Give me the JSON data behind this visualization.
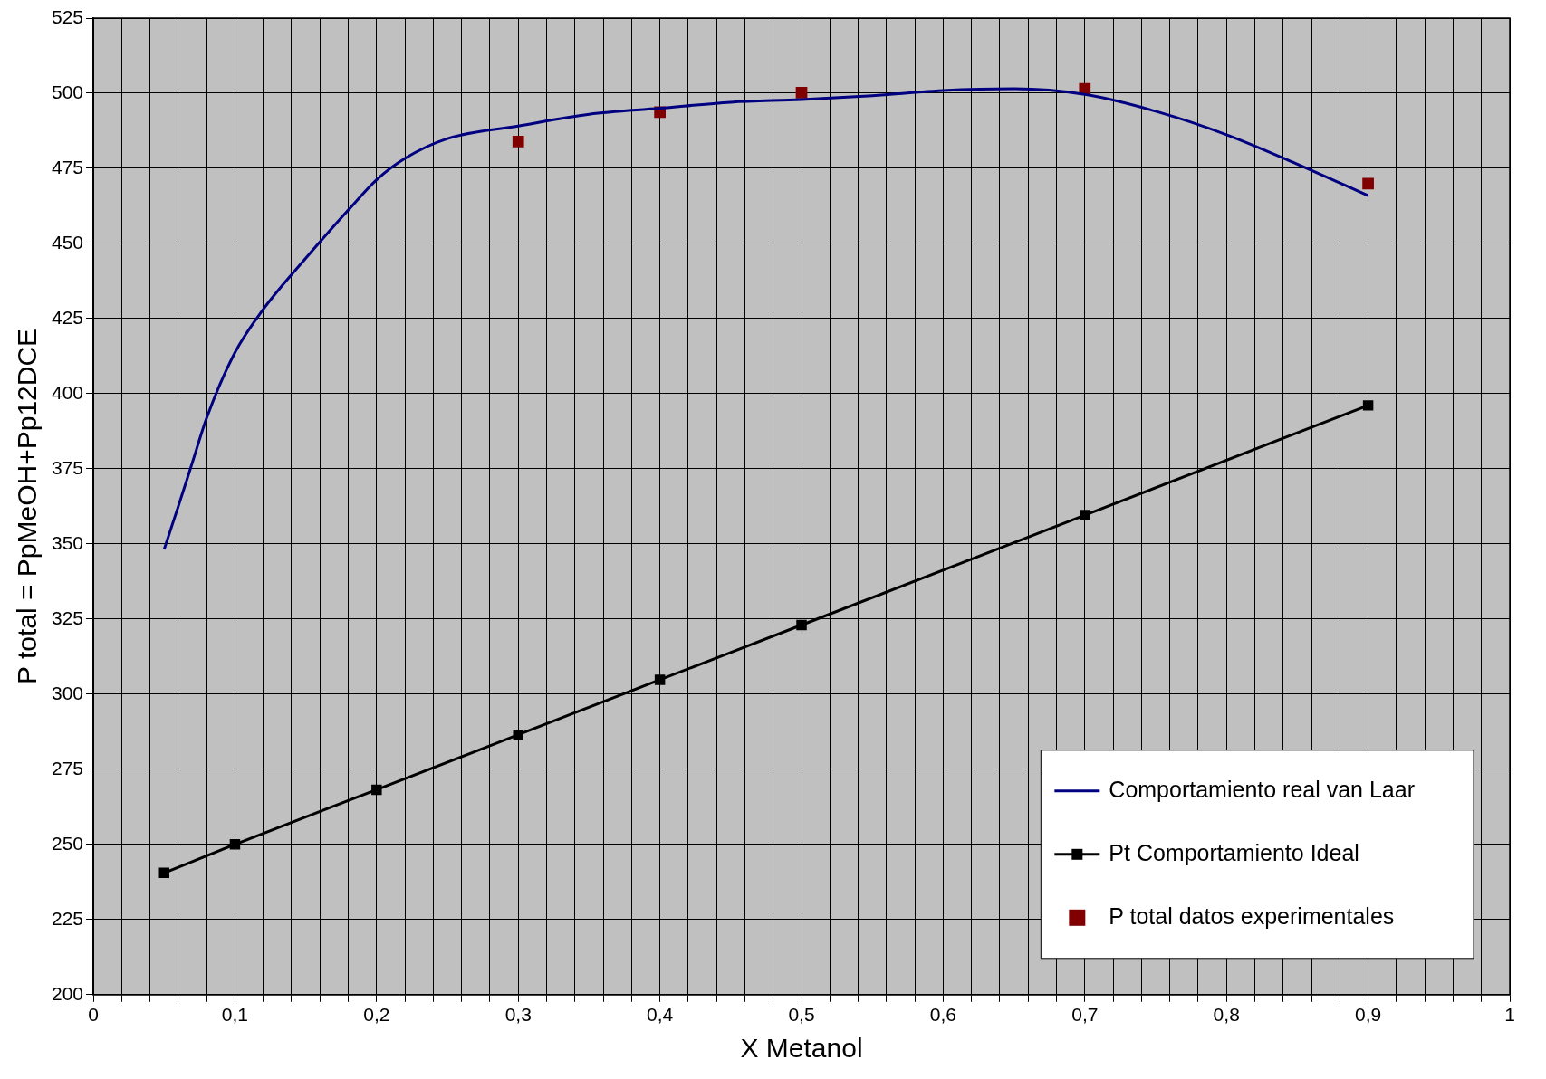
{
  "chart_data": {
    "type": "line",
    "xlabel": "X Metanol",
    "ylabel": "P total = PpMeOH+Pp12DCE",
    "xlim": [
      0,
      1
    ],
    "xticks": [
      0,
      {
        "value": 0.02,
        "label": null
      },
      {
        "value": 0.04,
        "label": null
      },
      {
        "value": 0.06,
        "label": null
      },
      {
        "value": 0.08,
        "label": null
      },
      {
        "value": 0.1,
        "label": "0,1"
      },
      {
        "value": 0.12,
        "label": null
      },
      {
        "value": 0.14,
        "label": null
      },
      {
        "value": 0.16,
        "label": null
      },
      {
        "value": 0.18,
        "label": null
      },
      {
        "value": 0.2,
        "label": "0,2"
      },
      {
        "value": 0.22,
        "label": null
      },
      {
        "value": 0.24,
        "label": null
      },
      {
        "value": 0.26,
        "label": null
      },
      {
        "value": 0.28,
        "label": null
      },
      {
        "value": 0.3,
        "label": "0,3"
      },
      {
        "value": 0.32,
        "label": null
      },
      {
        "value": 0.34,
        "label": null
      },
      {
        "value": 0.36,
        "label": null
      },
      {
        "value": 0.38,
        "label": null
      },
      {
        "value": 0.4,
        "label": "0,4"
      },
      {
        "value": 0.42,
        "label": null
      },
      {
        "value": 0.44,
        "label": null
      },
      {
        "value": 0.46,
        "label": null
      },
      {
        "value": 0.48,
        "label": null
      },
      {
        "value": 0.5,
        "label": "0,5"
      },
      {
        "value": 0.52,
        "label": null
      },
      {
        "value": 0.54,
        "label": null
      },
      {
        "value": 0.56,
        "label": null
      },
      {
        "value": 0.58,
        "label": null
      },
      {
        "value": 0.6,
        "label": "0,6"
      },
      {
        "value": 0.62,
        "label": null
      },
      {
        "value": 0.64,
        "label": null
      },
      {
        "value": 0.66,
        "label": null
      },
      {
        "value": 0.68,
        "label": null
      },
      {
        "value": 0.7,
        "label": "0,7"
      },
      {
        "value": 0.72,
        "label": null
      },
      {
        "value": 0.74,
        "label": null
      },
      {
        "value": 0.76,
        "label": null
      },
      {
        "value": 0.78,
        "label": null
      },
      {
        "value": 0.8,
        "label": "0,8"
      },
      {
        "value": 0.82,
        "label": null
      },
      {
        "value": 0.84,
        "label": null
      },
      {
        "value": 0.86,
        "label": null
      },
      {
        "value": 0.88,
        "label": null
      },
      {
        "value": 0.9,
        "label": "0,9"
      },
      {
        "value": 0.92,
        "label": null
      },
      {
        "value": 0.94,
        "label": null
      },
      {
        "value": 0.96,
        "label": null
      },
      {
        "value": 0.98,
        "label": null
      },
      1
    ],
    "ylim": [
      200,
      525
    ],
    "yticks": [
      200,
      225,
      250,
      275,
      300,
      325,
      350,
      375,
      400,
      425,
      450,
      475,
      500,
      525
    ],
    "grid": true,
    "legend": "bottom right",
    "series": [
      {
        "name": "Comportamiento real van Laar",
        "marker": "none",
        "color": "#000080",
        "x": [
          0.05,
          0.06,
          0.07,
          0.08,
          0.1,
          0.12,
          0.15,
          0.18,
          0.2,
          0.22,
          0.25,
          0.3,
          0.35,
          0.4,
          0.45,
          0.5,
          0.55,
          0.6,
          0.65,
          0.7,
          0.75,
          0.8,
          0.85,
          0.9
        ],
        "values": [
          348.2,
          362.5,
          377.2,
          391.9,
          413.7,
          428.1,
          445.1,
          461.1,
          471.2,
          478.3,
          484.9,
          489.1,
          493,
          495,
          497,
          497.9,
          499.2,
          500.9,
          501.5,
          499.6,
          494,
          486.2,
          476.4,
          465.9
        ]
      },
      {
        "name": "Pt Comportamiento Ideal",
        "marker": "square",
        "color": "#000000",
        "x": [
          0.05,
          0.1,
          0.2,
          0.3,
          0.4,
          0.5,
          0.7,
          0.9
        ],
        "values": [
          240.5,
          250,
          268.2,
          286.5,
          304.8,
          323,
          359.6,
          396.1
        ]
      },
      {
        "name": "P total datos experimentales",
        "type": "scatter",
        "marker": "square",
        "color": "#800000",
        "x": [
          0.3,
          0.4,
          0.5,
          0.7,
          0.9
        ],
        "values": [
          483.9,
          493.7,
          500.2,
          501.5,
          469.9
        ]
      }
    ]
  }
}
